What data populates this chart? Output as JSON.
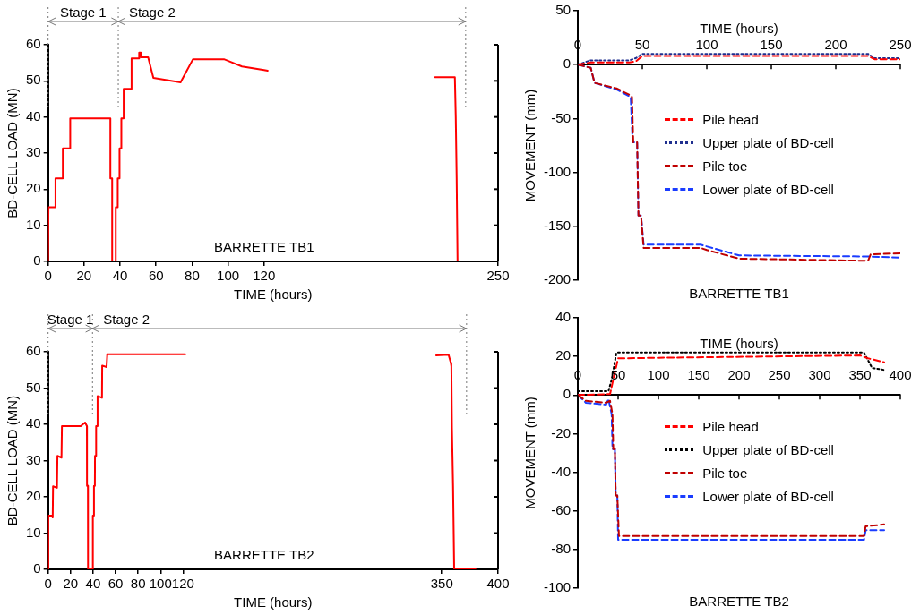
{
  "chart_data": [
    {
      "type": "line",
      "xlabel": "TIME (hours)",
      "ylabel": "BD-CELL LOAD (MN)",
      "xlim": [
        0,
        250
      ],
      "xticks": [
        0,
        20,
        40,
        60,
        80,
        100,
        120,
        250
      ],
      "ylim": [
        0,
        60
      ],
      "yticks": [
        0,
        10,
        20,
        30,
        40,
        50,
        60
      ],
      "grid": false,
      "legend": false,
      "line_style": "solid",
      "series": [
        {
          "color": "#ff0000",
          "x": [
            0,
            0.2,
            4.1,
            4.1,
            8.2,
            8.2,
            12.3,
            12.3,
            34.6,
            34.6,
            35.6,
            35.6,
            37.6,
            37.6,
            38.7,
            38.7,
            39.7,
            39.7,
            40.7,
            40.7,
            42,
            42,
            46.4,
            46.4,
            50.6,
            50.6,
            51.5,
            51.5,
            55.6,
            58.5,
            73.6,
            80.5,
            97.7,
            107.7,
            120,
            122,
            170,
            215,
            226,
            226.5,
            227,
            227.5,
            250
          ],
          "values": [
            0,
            15,
            15,
            23,
            23,
            31.3,
            31.3,
            39.6,
            39.6,
            23,
            23,
            0,
            0,
            15,
            15,
            23,
            23,
            31.3,
            31.3,
            39.6,
            39.6,
            47.8,
            47.8,
            56.2,
            56.2,
            57.8,
            57.8,
            56.5,
            56.5,
            50.8,
            49.6,
            56,
            56,
            54,
            53,
            52.8,
            null,
            51,
            51,
            40,
            23,
            0,
            0
          ]
        }
      ],
      "ref_lines": [
        {
          "axis": "x",
          "value": 0,
          "label": "Stage 1",
          "color": "#777777",
          "line_style": "dotted"
        },
        {
          "axis": "x",
          "value": 39,
          "label": "Stage 2",
          "color": "#777777",
          "line_style": "dotted"
        },
        {
          "axis": "x",
          "value": 232,
          "color": "#777777",
          "line_style": "dotted"
        }
      ],
      "annotations": [
        "BARRETTE TB1"
      ]
    },
    {
      "type": "line",
      "xlabel": "TIME (hours)",
      "ylabel": "MOVEMENT (mm)",
      "xlim": [
        0,
        250
      ],
      "xticks": [
        0,
        50,
        100,
        150,
        200,
        250
      ],
      "ylim": [
        -200,
        50
      ],
      "yticks": [
        -200,
        -150,
        -100,
        -50,
        0,
        50
      ],
      "grid": false,
      "legend": "right",
      "series": [
        {
          "name": "Pile head",
          "color": "#ff0000",
          "line_style": "dashed",
          "x": [
            0,
            10,
            40,
            45,
            50,
            225,
            230,
            250
          ],
          "values": [
            0,
            2,
            2,
            3,
            8,
            8,
            5,
            5
          ]
        },
        {
          "name": "Upper plate of BD-cell",
          "color": "#1f2f8f",
          "line_style": "dotted",
          "x": [
            0,
            10,
            40,
            45,
            50,
            225,
            230,
            250
          ],
          "values": [
            0,
            4,
            4,
            6,
            10,
            10,
            6,
            6
          ]
        },
        {
          "name": "Pile toe",
          "color": "#c00000",
          "line_style": "dashed",
          "x": [
            0,
            10,
            13,
            30,
            40,
            42,
            43,
            46,
            47,
            49,
            51,
            95,
            100,
            125,
            225,
            227,
            250
          ],
          "values": [
            0,
            -3,
            -17,
            -22,
            -28,
            -30,
            -72,
            -72,
            -140,
            -140,
            -170,
            -170,
            -172,
            -180,
            -182,
            -176,
            -175
          ]
        },
        {
          "name": "Lower plate of BD-cell",
          "color": "#1a3cff",
          "line_style": "dashed",
          "x": [
            0,
            10,
            13,
            30,
            41,
            42.5,
            46,
            47,
            49,
            51,
            95,
            125,
            225,
            250
          ],
          "values": [
            0,
            -3,
            -17,
            -23,
            -30,
            -72,
            -72,
            -140,
            -140,
            -167,
            -167,
            -177,
            -178,
            -179
          ]
        }
      ],
      "annotations": [
        "BARRETTE TB1"
      ]
    },
    {
      "type": "line",
      "xlabel": "TIME (hours)",
      "ylabel": "BD-CELL LOAD (MN)",
      "xlim": [
        0,
        400
      ],
      "xticks": [
        0,
        20,
        40,
        60,
        80,
        100,
        120,
        350,
        400
      ],
      "ylim": [
        0,
        60
      ],
      "yticks": [
        0,
        10,
        20,
        30,
        40,
        50,
        60
      ],
      "grid": false,
      "legend": false,
      "line_style": "solid",
      "series": [
        {
          "color": "#ff0000",
          "x": [
            0,
            0.2,
            3.4,
            4.1,
            4.4,
            7.9,
            8.3,
            11.9,
            12.3,
            29,
            32.9,
            34.5,
            34.6,
            35.4,
            35.5,
            39.7,
            39.8,
            40.7,
            40.8,
            41.6,
            41.7,
            42.6,
            42.7,
            43.9,
            44,
            47.9,
            48.1,
            48.4,
            52,
            52.6,
            120,
            122,
            250,
            345,
            356,
            358,
            358.5,
            359,
            360,
            361,
            380
          ],
          "values": [
            0,
            14.8,
            14.8,
            14.3,
            22.9,
            22.5,
            31.3,
            30.8,
            39.5,
            39.5,
            40.5,
            39.5,
            23,
            23,
            0,
            0,
            14.8,
            14.8,
            23,
            23,
            31.3,
            31.3,
            39.5,
            39.5,
            47.8,
            47.3,
            56.2,
            56.2,
            55.8,
            59.3,
            59.3,
            59.3,
            null,
            59,
            59.2,
            57,
            56,
            39,
            23,
            0,
            0
          ]
        }
      ],
      "ref_lines": [
        {
          "axis": "x",
          "value": 0,
          "label": "Stage 1",
          "color": "#777777",
          "line_style": "dotted"
        },
        {
          "axis": "x",
          "value": 39.5,
          "label": "Stage 2",
          "color": "#777777",
          "line_style": "dotted"
        },
        {
          "axis": "x",
          "value": 372,
          "color": "#777777",
          "line_style": "dotted"
        }
      ],
      "annotations": [
        "BARRETTE TB2"
      ]
    },
    {
      "type": "line",
      "xlabel": "TIME (hours)",
      "ylabel": "MOVEMENT (mm)",
      "xlim": [
        0,
        400
      ],
      "xticks": [
        0,
        50,
        100,
        150,
        200,
        250,
        300,
        350,
        400
      ],
      "ylim": [
        -100,
        40
      ],
      "yticks": [
        -100,
        -80,
        -60,
        -40,
        -20,
        0,
        20,
        40
      ],
      "grid": false,
      "legend": "right",
      "series": [
        {
          "name": "Pile head",
          "color": "#ff0000",
          "line_style": "dashed",
          "x": [
            0,
            40,
            45,
            50,
            100,
            350,
            360,
            380
          ],
          "values": [
            0,
            0.5,
            10,
            19,
            19.3,
            20.5,
            19,
            17
          ]
        },
        {
          "name": "Upper plate of BD-cell",
          "color": "#000000",
          "line_style": "dotted",
          "x": [
            0,
            38,
            42,
            48,
            355,
            365,
            380
          ],
          "values": [
            2,
            2,
            8,
            22,
            22,
            14,
            13
          ]
        },
        {
          "name": "Pile toe",
          "color": "#c00000",
          "line_style": "dashed",
          "x": [
            0,
            10,
            35,
            40,
            43,
            44,
            46,
            47,
            49,
            51,
            355,
            357,
            380
          ],
          "values": [
            0,
            -3,
            -4,
            -3,
            -10,
            -28,
            -28,
            -52,
            -52,
            -73,
            -73,
            -68,
            -67
          ]
        },
        {
          "name": "Lower plate of BD-cell",
          "color": "#1a3cff",
          "line_style": "dashed",
          "x": [
            0,
            10,
            35,
            38,
            42,
            43,
            46,
            47,
            49,
            50,
            355,
            357,
            380
          ],
          "values": [
            0,
            -4,
            -5,
            -2,
            -10,
            -28,
            -28,
            -52,
            -52,
            -75,
            -75,
            -70,
            -70
          ]
        }
      ],
      "annotations": [
        "BARRETTE TB2"
      ]
    }
  ]
}
